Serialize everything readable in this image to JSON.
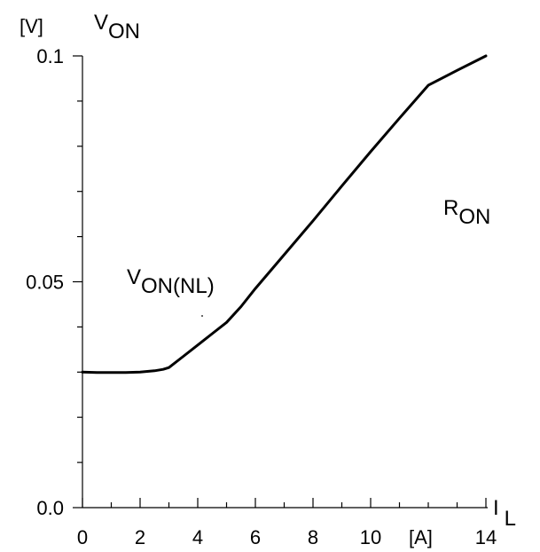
{
  "chart_data": {
    "type": "line",
    "x_range": [
      0,
      14
    ],
    "y_range": [
      0.0,
      0.1
    ],
    "x_major_ticks": [
      0,
      2,
      4,
      6,
      8,
      10,
      14
    ],
    "x_tick_labels": [
      "0",
      "2",
      "4",
      "6",
      "8",
      "10",
      "14"
    ],
    "x_unit_label": "[A]",
    "y_major_ticks": [
      0.0,
      0.05,
      0.1
    ],
    "y_tick_labels": [
      "0.0",
      "0.05",
      "0.1"
    ],
    "y_unit_label": "[V]",
    "y_axis_label": {
      "main": "V",
      "sub": "ON"
    },
    "x_axis_label": {
      "main": "I",
      "sub": "L"
    },
    "annotations": [
      {
        "id": "von-nl",
        "main": "V",
        "sub": "ON(NL)"
      },
      {
        "id": "ron",
        "main": "R",
        "sub": "ON"
      }
    ],
    "grid": false,
    "series": [
      {
        "x": [
          0,
          0.5,
          1,
          1.5,
          2,
          2.5,
          2.8,
          3,
          3.5,
          4,
          4.5,
          5,
          5.5,
          6,
          7,
          8,
          9,
          10,
          11,
          12,
          13,
          14
        ],
        "y": [
          0.03,
          0.0299,
          0.0299,
          0.0299,
          0.03,
          0.0303,
          0.0306,
          0.031,
          0.0335,
          0.036,
          0.0385,
          0.041,
          0.0445,
          0.0485,
          0.056,
          0.0635,
          0.0712,
          0.0788,
          0.0862,
          0.0935,
          0.0968,
          0.1
        ]
      }
    ]
  }
}
